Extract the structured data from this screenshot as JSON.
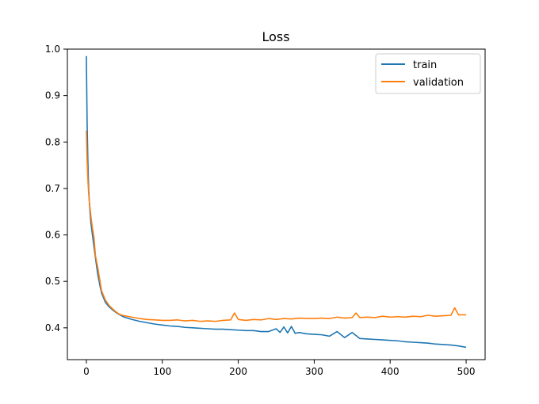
{
  "chart_data": {
    "type": "line",
    "title": "Loss",
    "xlabel": "",
    "ylabel": "",
    "xlim": [
      -25,
      525
    ],
    "ylim": [
      0.3315,
      1.0
    ],
    "xticks": [
      0,
      100,
      200,
      300,
      400,
      500
    ],
    "yticks": [
      0.4,
      0.5,
      0.6,
      0.7,
      0.8,
      0.9,
      1.0
    ],
    "grid": false,
    "legend_position": "top-right",
    "series": [
      {
        "name": "train",
        "color": "#1f77b4",
        "x": [
          0,
          1,
          2,
          3,
          4,
          5,
          6,
          8,
          10,
          12,
          15,
          18,
          20,
          25,
          30,
          35,
          40,
          45,
          50,
          60,
          70,
          80,
          90,
          100,
          110,
          120,
          130,
          140,
          150,
          160,
          170,
          180,
          190,
          200,
          210,
          220,
          230,
          240,
          250,
          255,
          260,
          265,
          270,
          275,
          280,
          290,
          300,
          310,
          320,
          330,
          340,
          350,
          360,
          370,
          380,
          390,
          400,
          410,
          420,
          430,
          440,
          450,
          460,
          470,
          480,
          490,
          500
        ],
        "values": [
          0.985,
          0.84,
          0.76,
          0.7,
          0.67,
          0.645,
          0.625,
          0.6,
          0.575,
          0.55,
          0.515,
          0.49,
          0.475,
          0.455,
          0.445,
          0.438,
          0.432,
          0.427,
          0.423,
          0.418,
          0.414,
          0.411,
          0.408,
          0.406,
          0.404,
          0.403,
          0.401,
          0.4,
          0.399,
          0.398,
          0.397,
          0.397,
          0.396,
          0.395,
          0.394,
          0.394,
          0.392,
          0.392,
          0.398,
          0.39,
          0.402,
          0.389,
          0.403,
          0.388,
          0.39,
          0.387,
          0.386,
          0.385,
          0.382,
          0.392,
          0.379,
          0.39,
          0.377,
          0.376,
          0.375,
          0.374,
          0.373,
          0.372,
          0.37,
          0.369,
          0.368,
          0.367,
          0.365,
          0.364,
          0.363,
          0.361,
          0.358
        ]
      },
      {
        "name": "validation",
        "color": "#ff7f0e",
        "x": [
          0,
          1,
          2,
          3,
          4,
          5,
          6,
          8,
          10,
          12,
          15,
          18,
          20,
          25,
          30,
          35,
          40,
          45,
          50,
          60,
          70,
          80,
          90,
          100,
          110,
          120,
          130,
          140,
          150,
          160,
          170,
          180,
          190,
          195,
          200,
          210,
          220,
          230,
          240,
          250,
          260,
          270,
          280,
          290,
          300,
          310,
          320,
          330,
          340,
          350,
          355,
          360,
          370,
          380,
          390,
          400,
          410,
          420,
          430,
          440,
          450,
          460,
          470,
          480,
          485,
          490,
          500
        ],
        "values": [
          0.825,
          0.76,
          0.72,
          0.69,
          0.67,
          0.655,
          0.64,
          0.615,
          0.595,
          0.555,
          0.53,
          0.5,
          0.48,
          0.46,
          0.448,
          0.44,
          0.433,
          0.428,
          0.426,
          0.423,
          0.42,
          0.418,
          0.417,
          0.416,
          0.416,
          0.417,
          0.415,
          0.416,
          0.414,
          0.415,
          0.414,
          0.416,
          0.417,
          0.432,
          0.418,
          0.416,
          0.418,
          0.417,
          0.42,
          0.418,
          0.42,
          0.419,
          0.421,
          0.42,
          0.42,
          0.421,
          0.42,
          0.423,
          0.421,
          0.422,
          0.432,
          0.422,
          0.423,
          0.422,
          0.425,
          0.423,
          0.424,
          0.423,
          0.425,
          0.424,
          0.427,
          0.425,
          0.426,
          0.427,
          0.443,
          0.428,
          0.428
        ]
      }
    ]
  }
}
